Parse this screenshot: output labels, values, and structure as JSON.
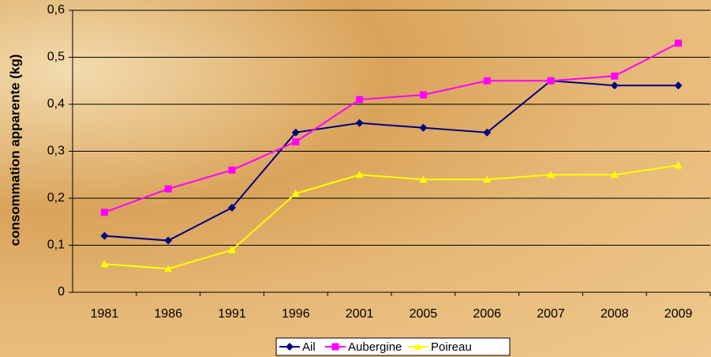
{
  "chart_data": {
    "type": "line",
    "y_label": "consommation apparente (kg)",
    "categories": [
      "1981",
      "1986",
      "1991",
      "1996",
      "2001",
      "2005",
      "2006",
      "2007",
      "2008",
      "2009"
    ],
    "series": [
      {
        "name": "Ail",
        "color": "#000080",
        "marker": "diamond",
        "values": [
          0.12,
          0.11,
          0.18,
          0.34,
          0.36,
          0.35,
          0.34,
          0.45,
          0.44,
          0.44
        ]
      },
      {
        "name": "Aubergine",
        "color": "#ff00ff",
        "marker": "square",
        "values": [
          0.17,
          0.22,
          0.26,
          0.32,
          0.41,
          0.42,
          0.45,
          0.45,
          0.46,
          0.53
        ]
      },
      {
        "name": "Poireau",
        "color": "#ffff00",
        "marker": "triangle",
        "values": [
          0.06,
          0.05,
          0.09,
          0.21,
          0.25,
          0.24,
          0.24,
          0.25,
          0.25,
          0.27
        ]
      }
    ],
    "ylim": [
      0,
      0.6
    ],
    "yticks": [
      0,
      {
        "value": 0.1,
        "label": "0,1"
      },
      {
        "value": 0.2,
        "label": "0,2"
      },
      {
        "value": 0.3,
        "label": "0,3"
      },
      {
        "value": 0.4,
        "label": "0,4"
      },
      {
        "value": 0.5,
        "label": "0,5"
      },
      {
        "value": 0.6,
        "label": "0,6"
      }
    ],
    "grid": true,
    "legend": "bottom"
  }
}
